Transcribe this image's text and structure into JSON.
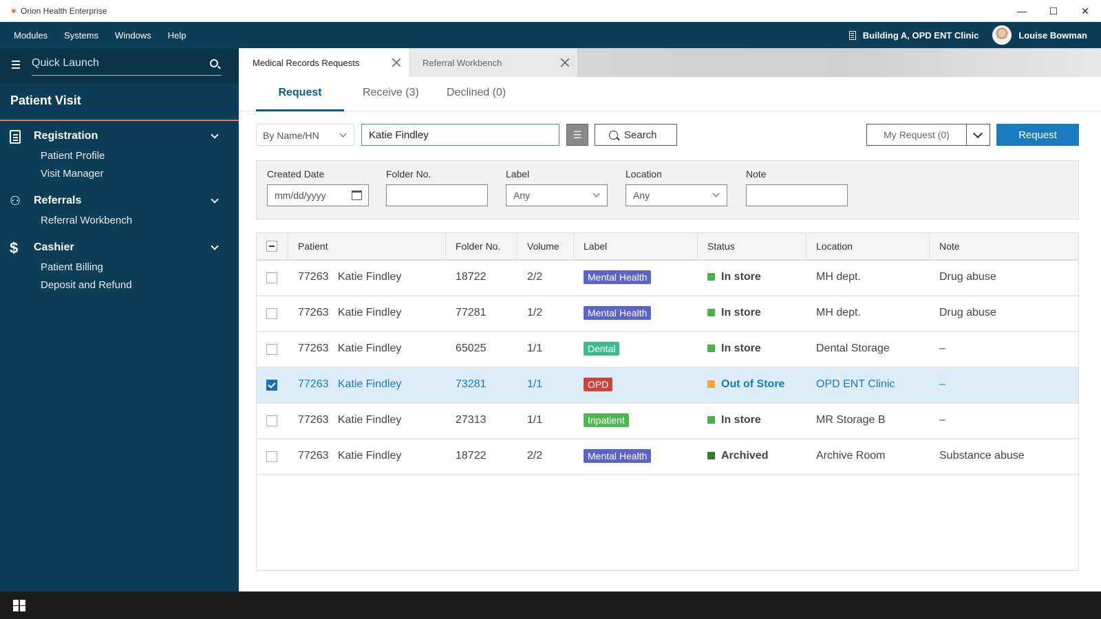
{
  "app": {
    "title": "Orion Health Enterprise",
    "logo_glyph": "✶"
  },
  "window_controls": {
    "minimize": "—",
    "maximize": "☐",
    "close": "✕"
  },
  "menubar": {
    "items": [
      "Modules",
      "Systems",
      "Windows",
      "Help"
    ],
    "location": "Building A, OPD ENT Clinic",
    "user": "Louise Bowman"
  },
  "sidebar": {
    "quick_launch_placeholder": "Quick Launch",
    "section_title": "Patient Visit",
    "sections": [
      {
        "label": "Registration",
        "icon": "document-icon",
        "items": [
          "Patient Profile",
          "Visit Manager"
        ]
      },
      {
        "label": "Referrals",
        "icon": "user-icon",
        "items": [
          "Referral Workbench"
        ]
      },
      {
        "label": "Cashier",
        "icon": "dollar-icon",
        "items": [
          "Patient Billing",
          "Deposit and Refund"
        ]
      }
    ]
  },
  "doc_tabs": [
    {
      "label": "Medical Records Requests",
      "active": true
    },
    {
      "label": "Referral Workbench",
      "active": false
    }
  ],
  "sub_tabs": [
    {
      "label": "Request",
      "active": true
    },
    {
      "label": "Receive (3)",
      "active": false
    },
    {
      "label": "Declined (0)",
      "active": false
    }
  ],
  "search": {
    "mode": "By Name/HN",
    "value": "Katie Findley",
    "search_label": "Search",
    "my_request": "My Request (0)",
    "request_label": "Request"
  },
  "advanced": {
    "created_date": {
      "label": "Created Date",
      "placeholder": "mm/dd/yyyy"
    },
    "folder_no": {
      "label": "Folder No."
    },
    "label": {
      "label": "Label",
      "value": "Any"
    },
    "location": {
      "label": "Location",
      "value": "Any"
    },
    "note": {
      "label": "Note"
    }
  },
  "table": {
    "headers": [
      "Patient",
      "Folder No.",
      "Volume",
      "Label",
      "Status",
      "Location",
      "Note"
    ],
    "rows": [
      {
        "hn": "77263",
        "name": "Katie Findley",
        "folder": "18722",
        "volume": "2/2",
        "label": "Mental Health",
        "label_color": "#5a63c8",
        "status": "In store",
        "status_color": "#4caf50",
        "location": "MH dept.",
        "note": "Drug abuse",
        "checked": false
      },
      {
        "hn": "77263",
        "name": "Katie Findley",
        "folder": "77281",
        "volume": "1/2",
        "label": "Mental Health",
        "label_color": "#5a63c8",
        "status": "In store",
        "status_color": "#4caf50",
        "location": "MH dept.",
        "note": "Drug abuse",
        "checked": false
      },
      {
        "hn": "77263",
        "name": "Katie Findley",
        "folder": "65025",
        "volume": "1/1",
        "label": "Dental",
        "label_color": "#3fb98f",
        "status": "In store",
        "status_color": "#4caf50",
        "location": "Dental Storage",
        "note": "–",
        "checked": false
      },
      {
        "hn": "77263",
        "name": "Katie Findley",
        "folder": "73281",
        "volume": "1/1",
        "label": "OPD",
        "label_color": "#c9463d",
        "status": "Out of Store",
        "status_color": "#f2a93b",
        "location": "OPD ENT Clinic",
        "note": "–",
        "checked": true
      },
      {
        "hn": "77263",
        "name": "Katie Findley",
        "folder": "27313",
        "volume": "1/1",
        "label": "Inpatient",
        "label_color": "#4cb84f",
        "status": "In store",
        "status_color": "#4caf50",
        "location": "MR Storage B",
        "note": "–",
        "checked": false
      },
      {
        "hn": "77263",
        "name": "Katie Findley",
        "folder": "18722",
        "volume": "2/2",
        "label": "Mental Health",
        "label_color": "#5a63c8",
        "status": "Archived",
        "status_color": "#2e7d32",
        "location": "Archive Room",
        "note": "Substance abuse",
        "checked": false
      }
    ]
  }
}
